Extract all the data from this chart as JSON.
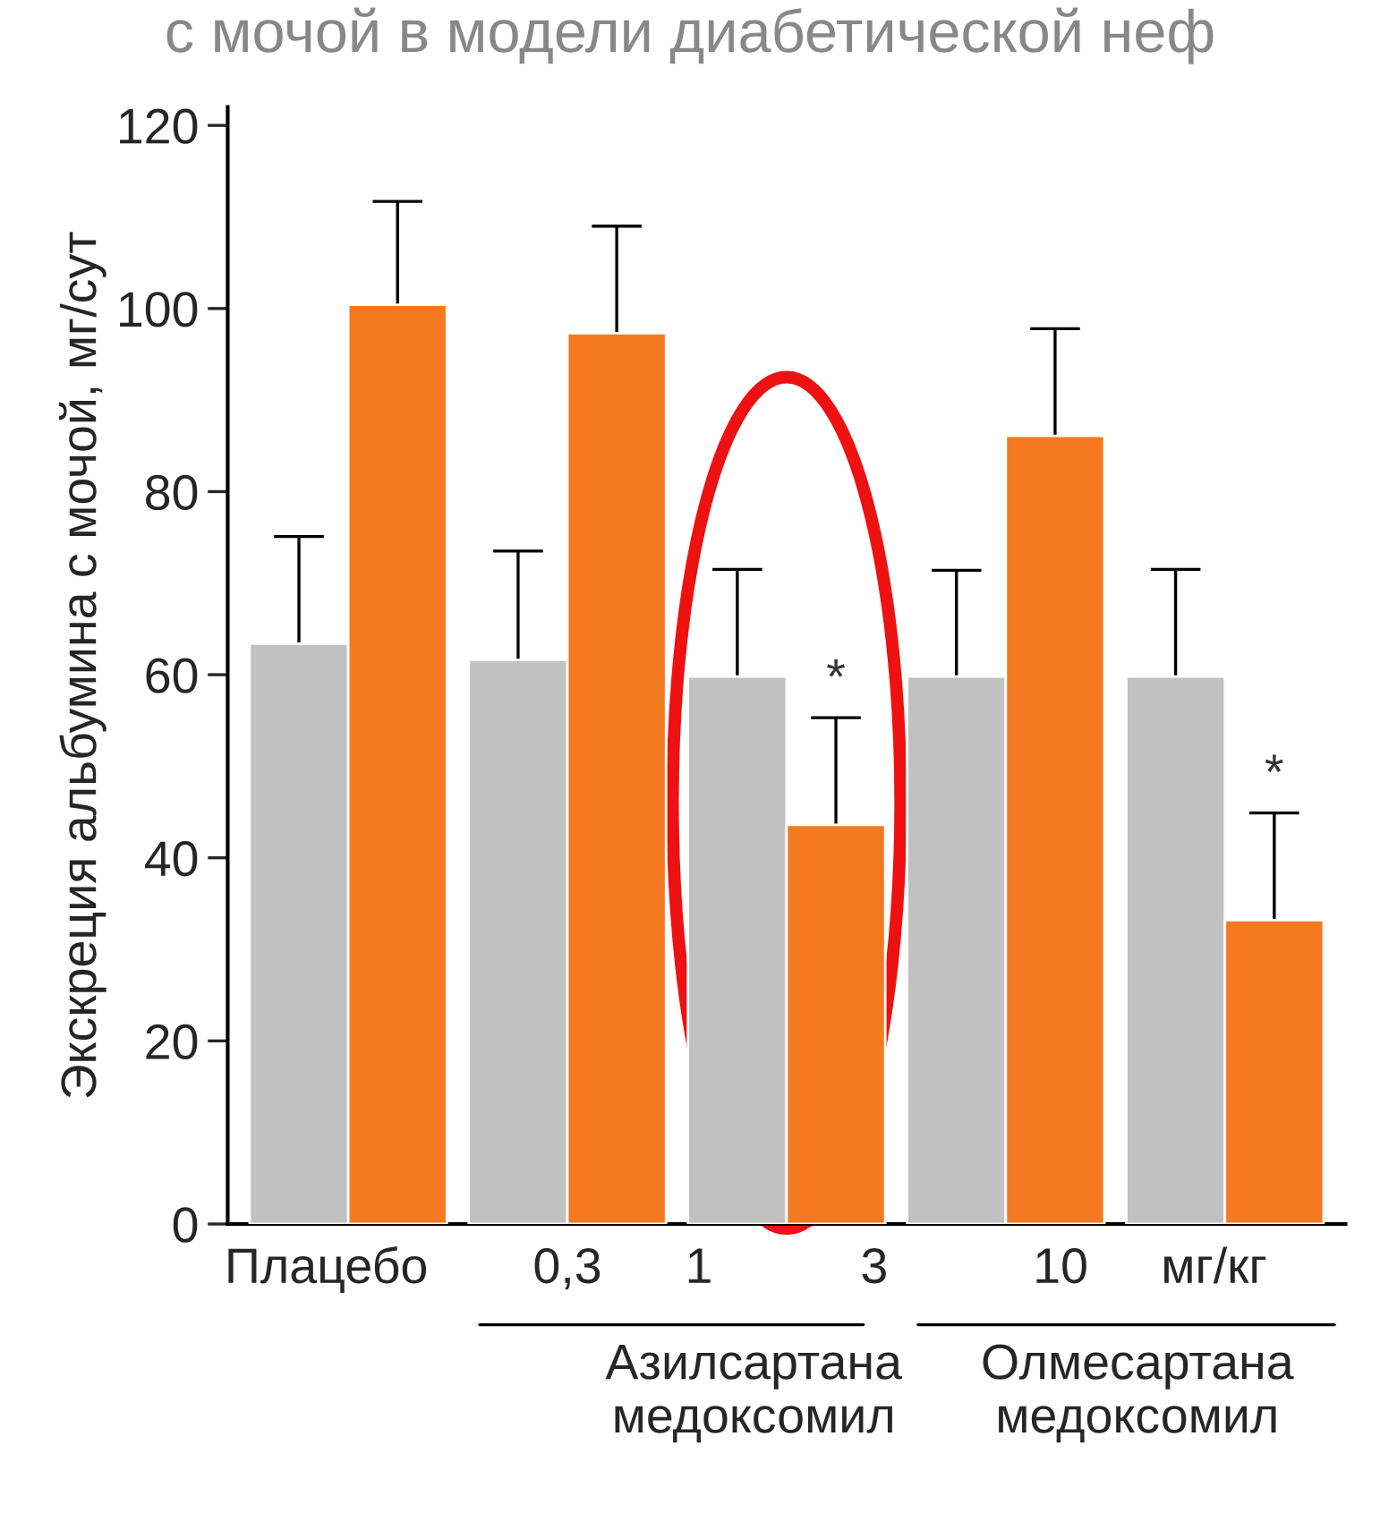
{
  "chart_data": {
    "type": "bar",
    "title": "с мочой в модели диабетической неф",
    "ylabel": "Экскреция альбумина с мочой, мг/сут",
    "categories": [
      null,
      null,
      null,
      null,
      null
    ],
    "series": [
      {
        "color": "#c0c1c0",
        "values": [
          63.4,
          61.6,
          59.8,
          59.8,
          59.8
        ],
        "errors": [
          11.7,
          11.9,
          11.7,
          11.6,
          11.7
        ]
      },
      {
        "color": "#f47920",
        "values": [
          100.4,
          97.3,
          43.6,
          86.1,
          33.2
        ],
        "errors": [
          11.3,
          11.7,
          11.7,
          11.7,
          11.7
        ],
        "value_labels": [
          null,
          null,
          "*",
          null,
          "*"
        ]
      }
    ],
    "annotations": [
      "Плацебо",
      "0,3",
      "1",
      "3",
      "10",
      "мг/кг",
      "Азилсартана\nмедоксомил",
      "Олмесартана\nмедоксомил"
    ],
    "ylim": [
      0,
      122
    ],
    "yticks": [
      0,
      20,
      40,
      60,
      80,
      100,
      120
    ],
    "grid": false,
    "legend": false
  }
}
